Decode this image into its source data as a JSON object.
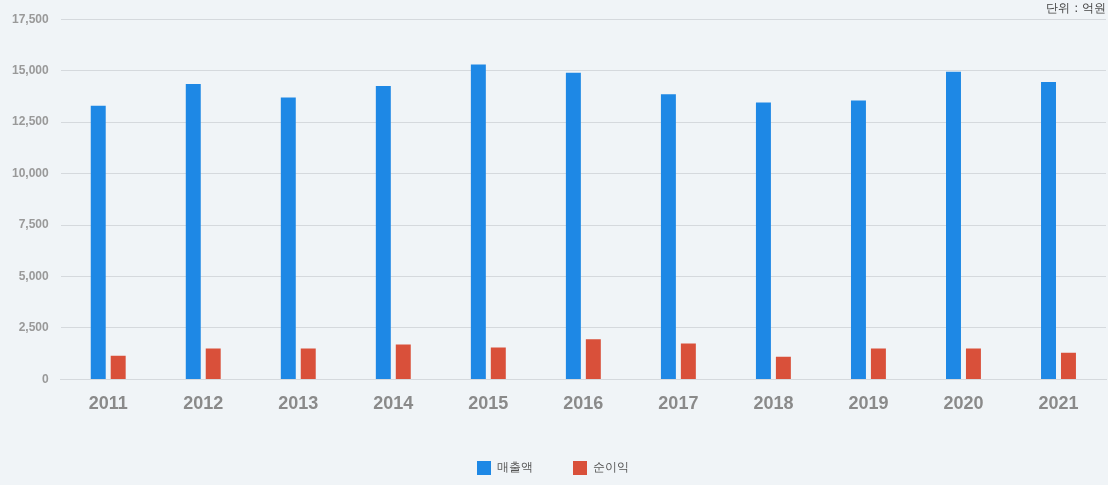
{
  "chart_data": {
    "type": "bar",
    "categories": [
      "2011",
      "2012",
      "2013",
      "2014",
      "2015",
      "2016",
      "2017",
      "2018",
      "2019",
      "2020",
      "2021"
    ],
    "series": [
      {
        "name": "매출액",
        "color": "#1e88e5",
        "values": [
          13300,
          14350,
          13700,
          14250,
          15300,
          14900,
          13850,
          13450,
          13550,
          14950,
          14450
        ]
      },
      {
        "name": "순이익",
        "color": "#d9503a",
        "values": [
          1150,
          1500,
          1500,
          1700,
          1550,
          1950,
          1750,
          1100,
          1500,
          1500,
          1300
        ]
      }
    ],
    "ylim": [
      0,
      17500
    ],
    "yticks": [
      {
        "value": 0,
        "label": "0"
      },
      {
        "value": 2500,
        "label": "2,500"
      },
      {
        "value": 5000,
        "label": "5,000"
      },
      {
        "value": 7500,
        "label": "7,500"
      },
      {
        "value": 10000,
        "label": "10,000"
      },
      {
        "value": 12500,
        "label": "12,500"
      },
      {
        "value": 15000,
        "label": "15,000"
      },
      {
        "value": 17500,
        "label": "17,500"
      }
    ],
    "grid": "y",
    "legend": "bottom",
    "annotations": [
      "단위 : 억원"
    ]
  }
}
